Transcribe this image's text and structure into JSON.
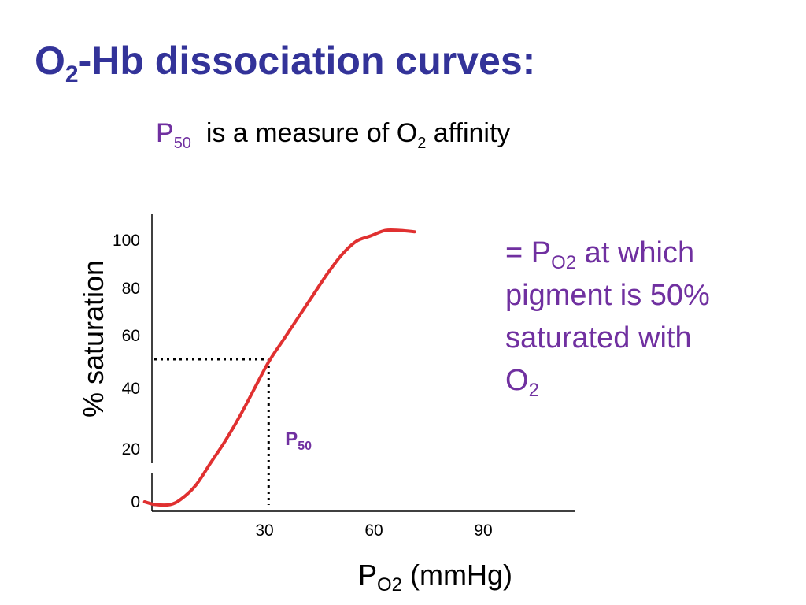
{
  "slide": {
    "title_main": "O",
    "title_sub": "2",
    "title_rest": "-Hb dissociation curves:",
    "subtitle_p": "P",
    "subtitle_p_sub": "50",
    "subtitle_text": "is a measure of O",
    "subtitle_o_sub": "2",
    "subtitle_end": "affinity"
  },
  "annotation": {
    "line1_prefix": "= P",
    "line1_sub": "O2",
    "line1_suffix": " at which",
    "line2": "pigment is 50%",
    "line3": "saturated with",
    "line4_main": "O",
    "line4_sub": "2"
  },
  "colors": {
    "title": "#333399",
    "curve": "#E03030",
    "annotation": "#7030A0",
    "axis": "#000000"
  },
  "chart_data": {
    "type": "line",
    "xlabel_main": "P",
    "xlabel_sub": "O2",
    "xlabel_unit": " (mmHg)",
    "ylabel": "% saturation",
    "xticks": [
      30,
      60,
      90
    ],
    "yticks": [
      {
        "value": 100,
        "label": "100"
      },
      {
        "value": 80,
        "label": "80"
      },
      {
        "value": 60,
        "label": "60"
      },
      {
        "value": 40,
        "label": "40"
      },
      {
        "value": 20,
        "label": "20"
      },
      {
        "value": 0,
        "label": "0"
      }
    ],
    "p50_label": "P",
    "p50_sub": "50",
    "p50": {
      "x": 32,
      "y": 52
    },
    "series": [
      {
        "points": [
          [
            -2,
            0
          ],
          [
            1,
            -1
          ],
          [
            5,
            -1
          ],
          [
            8,
            1
          ],
          [
            12,
            6
          ],
          [
            16,
            14
          ],
          [
            20,
            22
          ],
          [
            24,
            31
          ],
          [
            28,
            41
          ],
          [
            32,
            51
          ],
          [
            36,
            59
          ],
          [
            40,
            67
          ],
          [
            44,
            75
          ],
          [
            48,
            83
          ],
          [
            52,
            90
          ],
          [
            56,
            95
          ],
          [
            60,
            97
          ],
          [
            64,
            99
          ],
          [
            68,
            99
          ],
          [
            72,
            98.5
          ]
        ]
      }
    ]
  }
}
